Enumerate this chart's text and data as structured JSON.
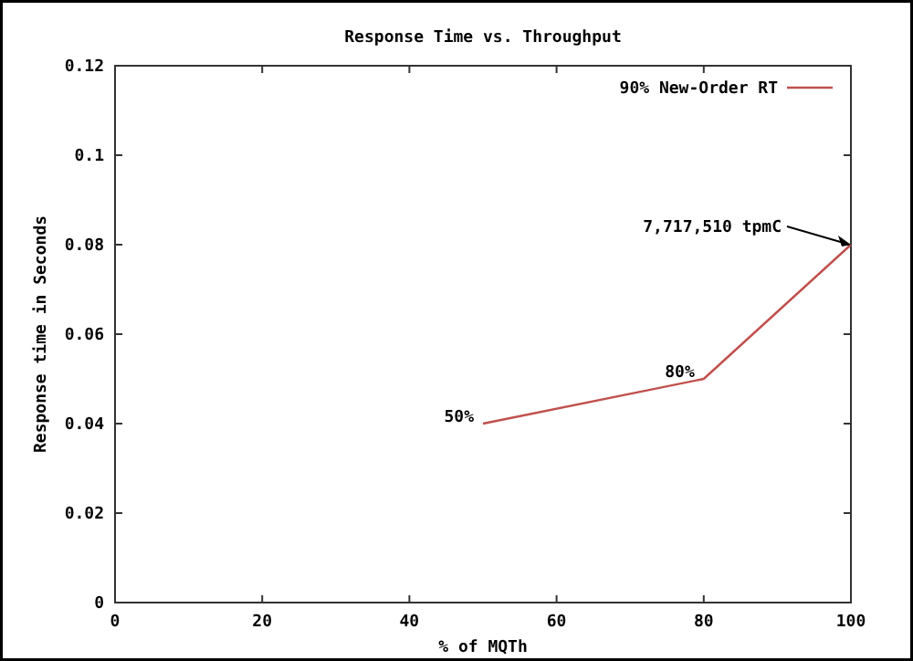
{
  "chart_data": {
    "type": "line",
    "title": "Response Time vs. Throughput",
    "xlabel": "% of MQTh",
    "ylabel": "Response time in Seconds",
    "x": [
      50,
      80,
      100
    ],
    "series": [
      {
        "name": "90% New-Order RT",
        "color": "#c0504d",
        "values": [
          0.04,
          0.05,
          0.08
        ]
      }
    ],
    "xlim": [
      0,
      100
    ],
    "xticks": [
      0,
      20,
      40,
      60,
      80,
      100
    ],
    "ylim": [
      0,
      0.12
    ],
    "yticks": [
      0,
      0.02,
      0.04,
      0.06,
      0.08,
      0.1,
      0.12
    ],
    "annotations": [
      {
        "text": "50%",
        "x": 50,
        "y": 0.04
      },
      {
        "text": "80%",
        "x": 80,
        "y": 0.05
      },
      {
        "text": "7,717,510 tpmC",
        "x": 100,
        "y": 0.08
      }
    ],
    "legend": "top right",
    "grid": false,
    "marker": "none",
    "line_style": "solid"
  }
}
